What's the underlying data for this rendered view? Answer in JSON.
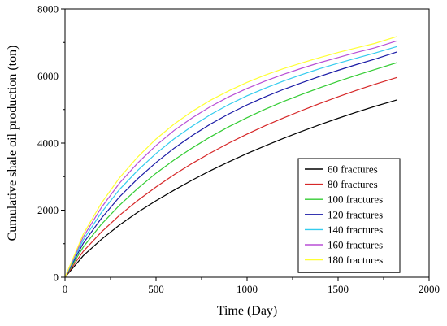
{
  "chart_data": {
    "type": "line",
    "xlabel": "Time (Day)",
    "ylabel": "Cumulative  shale oil production (ton)",
    "xlim": [
      0,
      2000
    ],
    "ylim": [
      0,
      8000
    ],
    "xticks": [
      0,
      500,
      1000,
      1500,
      2000
    ],
    "yticks": [
      0,
      2000,
      4000,
      6000,
      8000
    ],
    "grid": false,
    "legend_position": "bottom-right",
    "x": [
      0,
      100,
      200,
      300,
      400,
      500,
      600,
      700,
      800,
      900,
      1000,
      1100,
      1200,
      1300,
      1400,
      1500,
      1600,
      1700,
      1825
    ],
    "series": [
      {
        "name": "60 fractures",
        "color": "#000000",
        "values": [
          0,
          640,
          1130,
          1560,
          1940,
          2280,
          2600,
          2900,
          3180,
          3440,
          3690,
          3920,
          4140,
          4350,
          4550,
          4740,
          4920,
          5090,
          5290
        ]
      },
      {
        "name": "80 fractures",
        "color": "#d62728",
        "values": [
          0,
          770,
          1350,
          1850,
          2290,
          2690,
          3060,
          3400,
          3710,
          4000,
          4270,
          4520,
          4750,
          4970,
          5180,
          5380,
          5570,
          5750,
          5960
        ]
      },
      {
        "name": "100 fractures",
        "color": "#33cc33",
        "values": [
          0,
          900,
          1580,
          2150,
          2650,
          3100,
          3500,
          3860,
          4190,
          4490,
          4760,
          5010,
          5240,
          5450,
          5650,
          5840,
          6020,
          6190,
          6400
        ]
      },
      {
        "name": "120 fractures",
        "color": "#1a1aa6",
        "values": [
          0,
          1010,
          1760,
          2400,
          2940,
          3420,
          3850,
          4230,
          4570,
          4870,
          5140,
          5380,
          5600,
          5800,
          5990,
          6170,
          6340,
          6500,
          6720
        ]
      },
      {
        "name": "140 fractures",
        "color": "#33ccee",
        "values": [
          0,
          1110,
          1930,
          2620,
          3190,
          3690,
          4130,
          4510,
          4850,
          5150,
          5410,
          5640,
          5850,
          6040,
          6220,
          6380,
          6530,
          6680,
          6880
        ]
      },
      {
        "name": "160 fractures",
        "color": "#b94fd6",
        "values": [
          0,
          1200,
          2080,
          2810,
          3410,
          3930,
          4380,
          4760,
          5090,
          5380,
          5630,
          5850,
          6050,
          6230,
          6400,
          6550,
          6700,
          6840,
          7050
        ]
      },
      {
        "name": "180 fractures",
        "color": "#ffff33",
        "values": [
          0,
          1280,
          2210,
          2970,
          3590,
          4120,
          4570,
          4950,
          5280,
          5560,
          5810,
          6030,
          6220,
          6390,
          6550,
          6700,
          6840,
          6970,
          7180
        ]
      }
    ]
  }
}
